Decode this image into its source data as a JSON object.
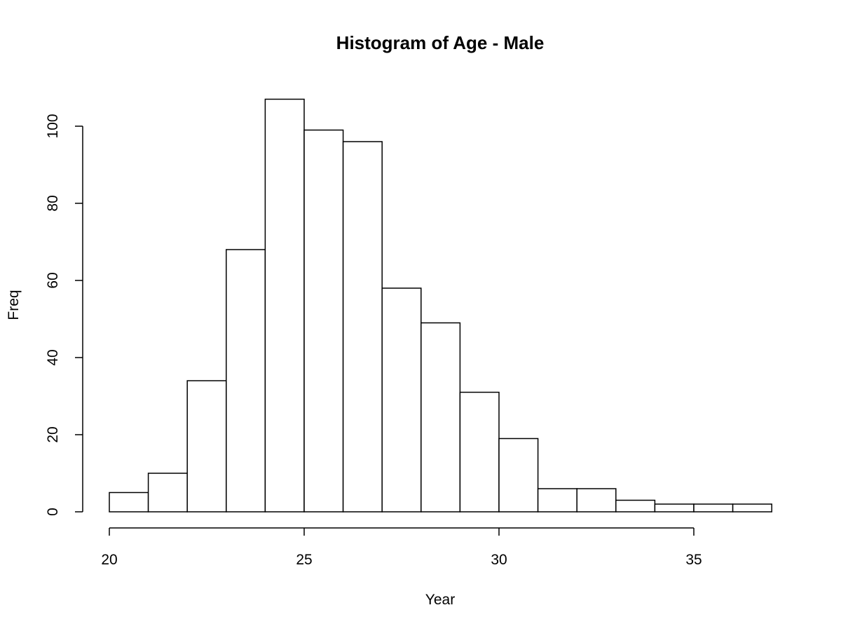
{
  "chart_data": {
    "type": "bar",
    "subtype": "histogram",
    "title": "Histogram of Age - Male",
    "xlabel": "Year",
    "ylabel": "Freq",
    "bins": [
      {
        "start": 20,
        "end": 21,
        "value": 5
      },
      {
        "start": 21,
        "end": 22,
        "value": 10
      },
      {
        "start": 22,
        "end": 23,
        "value": 34
      },
      {
        "start": 23,
        "end": 24,
        "value": 68
      },
      {
        "start": 24,
        "end": 25,
        "value": 107
      },
      {
        "start": 25,
        "end": 26,
        "value": 99
      },
      {
        "start": 26,
        "end": 27,
        "value": 96
      },
      {
        "start": 27,
        "end": 28,
        "value": 58
      },
      {
        "start": 28,
        "end": 29,
        "value": 49
      },
      {
        "start": 29,
        "end": 30,
        "value": 31
      },
      {
        "start": 30,
        "end": 31,
        "value": 19
      },
      {
        "start": 31,
        "end": 32,
        "value": 6
      },
      {
        "start": 32,
        "end": 33,
        "value": 6
      },
      {
        "start": 33,
        "end": 34,
        "value": 3
      },
      {
        "start": 34,
        "end": 35,
        "value": 2
      },
      {
        "start": 35,
        "end": 36,
        "value": 2
      },
      {
        "start": 36,
        "end": 37,
        "value": 2
      }
    ],
    "xticks": [
      20,
      25,
      30,
      35
    ],
    "yticks": [
      0,
      20,
      40,
      60,
      80,
      100
    ],
    "xlim": [
      20,
      37
    ],
    "ylim": [
      0,
      107
    ],
    "grid": false,
    "legend": "none",
    "colors": {
      "bar_fill": "#ffffff",
      "bar_stroke": "#000000"
    }
  }
}
